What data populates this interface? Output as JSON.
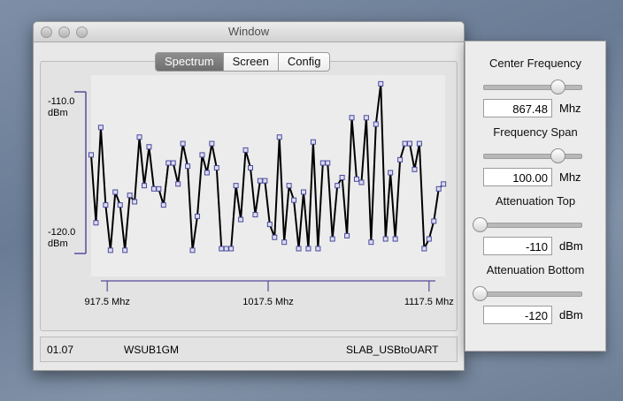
{
  "window": {
    "title": "Window"
  },
  "tabs": [
    "Spectrum",
    "Screen",
    "Config"
  ],
  "chart_data": {
    "type": "line",
    "x": [
      907.5,
      910.5,
      913.5,
      916.5,
      919.5,
      922.5,
      925.5,
      928.5,
      931.5,
      934.5,
      937.5,
      940.5,
      943.5,
      946.5,
      949.5,
      952.5,
      955.5,
      958.5,
      961.5,
      964.5,
      967.5,
      970.5,
      973.5,
      976.5,
      979.5,
      982.5,
      985.5,
      988.5,
      991.5,
      994.5,
      997.5,
      1000.5,
      1003.5,
      1006.5,
      1009.5,
      1012.5,
      1015.5,
      1018.5,
      1021.5,
      1024.5,
      1027.5,
      1030.5,
      1033.5,
      1036.5,
      1039.5,
      1042.5,
      1045.5,
      1048.5,
      1051.5,
      1054.5,
      1057.5,
      1060.5,
      1063.5,
      1066.5,
      1069.5,
      1072.5,
      1075.5,
      1078.5,
      1081.5,
      1084.5,
      1087.5,
      1090.5,
      1093.5,
      1096.5,
      1099.5,
      1102.5,
      1105.5,
      1108.5,
      1111.5,
      1114.5,
      1117.5,
      1120.5,
      1123.5,
      1126.5
    ],
    "values": [
      -113.9,
      -118.1,
      -112.2,
      -117.0,
      -119.8,
      -116.2,
      -117.0,
      -119.8,
      -116.4,
      -116.8,
      -112.8,
      -115.8,
      -113.4,
      -116.0,
      -116.0,
      -117.0,
      -114.4,
      -114.4,
      -115.7,
      -113.2,
      -114.6,
      -119.8,
      -117.7,
      -113.9,
      -115.0,
      -113.2,
      -114.7,
      -119.7,
      -119.7,
      -119.7,
      -115.8,
      -117.9,
      -113.6,
      -114.7,
      -117.6,
      -115.5,
      -115.5,
      -118.2,
      -119.0,
      -112.8,
      -119.3,
      -115.8,
      -116.7,
      -119.7,
      -116.2,
      -119.7,
      -113.1,
      -119.7,
      -114.4,
      -114.4,
      -119.1,
      -115.8,
      -115.3,
      -118.9,
      -111.6,
      -115.4,
      -115.6,
      -111.6,
      -119.3,
      -112.0,
      -109.5,
      -119.1,
      -115.0,
      -119.1,
      -114.2,
      -113.2,
      -113.2,
      -114.8,
      -113.2,
      -119.7,
      -119.1,
      -118.0,
      -116.0,
      -115.7
    ],
    "color": "#000000",
    "marker_color": "#4a4a9c",
    "axis_color": "#5a4a9a",
    "xlim": [
      907.5,
      1127.5
    ],
    "xticks": [
      {
        "value": 917.5,
        "label": "917.5 Mhz"
      },
      {
        "value": 1017.5,
        "label": "1017.5 Mhz"
      },
      {
        "value": 1117.5,
        "label": "1117.5 Mhz"
      }
    ],
    "ylim": [
      -120,
      -110
    ],
    "yticks": [
      {
        "value": -110,
        "label": "-110.0\ndBm"
      },
      {
        "value": -120,
        "label": "-120.0\ndBm"
      }
    ]
  },
  "status": [
    "01.07",
    "WSUB1GM",
    "SLAB_USBtoUART"
  ],
  "controls": [
    {
      "label": "Center Frequency",
      "value": "867.48",
      "unit": "Mhz"
    },
    {
      "label": "Frequency Span",
      "value": "100.00",
      "unit": "Mhz"
    },
    {
      "label": "Attenuation Top",
      "value": "-110",
      "unit": "dBm"
    },
    {
      "label": "Attenuation Bottom",
      "value": "-120",
      "unit": "dBm"
    }
  ]
}
